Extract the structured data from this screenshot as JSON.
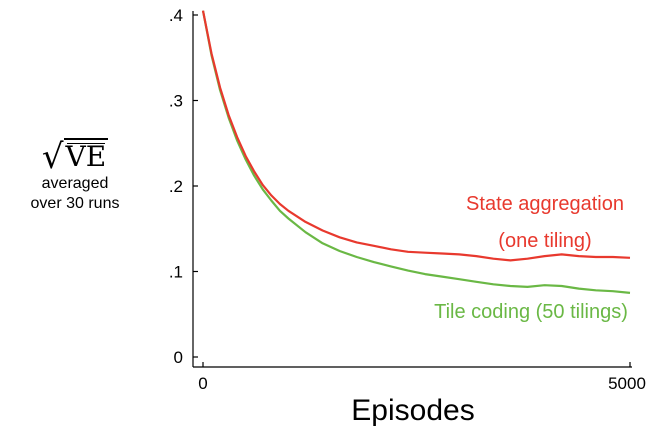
{
  "chart_data": {
    "type": "line",
    "title": "",
    "xlabel": "Episodes",
    "ylabel": {
      "main": "VE",
      "line1": "averaged",
      "line2": "over 30 runs"
    },
    "xlim": [
      0,
      5000
    ],
    "ylim": [
      0,
      0.4
    ],
    "xticks": [
      {
        "value": 0,
        "label": "0"
      },
      {
        "value": 5000,
        "label": "5000"
      }
    ],
    "yticks": [
      {
        "value": 0,
        "label": "0"
      },
      {
        "value": 0.1,
        "label": ".1"
      },
      {
        "value": 0.2,
        "label": ".2"
      },
      {
        "value": 0.3,
        "label": ".3"
      },
      {
        "value": 0.4,
        "label": ".4"
      }
    ],
    "grid": false,
    "series": [
      {
        "name": "State aggregation (one tiling)",
        "label_lines": [
          "State aggregation",
          "(one tiling)"
        ],
        "color": "#e8392e",
        "x": [
          0,
          100,
          200,
          300,
          400,
          500,
          600,
          700,
          800,
          900,
          1000,
          1200,
          1400,
          1600,
          1800,
          2000,
          2200,
          2400,
          2600,
          2800,
          3000,
          3200,
          3400,
          3600,
          3800,
          4000,
          4200,
          4400,
          4600,
          4800,
          5000
        ],
        "values": [
          0.405,
          0.355,
          0.315,
          0.283,
          0.257,
          0.235,
          0.217,
          0.201,
          0.189,
          0.179,
          0.171,
          0.158,
          0.148,
          0.14,
          0.134,
          0.13,
          0.126,
          0.123,
          0.122,
          0.121,
          0.12,
          0.118,
          0.115,
          0.113,
          0.115,
          0.118,
          0.12,
          0.118,
          0.117,
          0.117,
          0.116
        ]
      },
      {
        "name": "Tile coding (50 tilings)",
        "label_lines": [
          "Tile coding (50 tilings)"
        ],
        "color": "#6ab845",
        "x": [
          0,
          100,
          200,
          300,
          400,
          500,
          600,
          700,
          800,
          900,
          1000,
          1200,
          1400,
          1600,
          1800,
          2000,
          2200,
          2400,
          2600,
          2800,
          3000,
          3200,
          3400,
          3600,
          3800,
          4000,
          4200,
          4400,
          4600,
          4800,
          5000
        ],
        "values": [
          0.405,
          0.353,
          0.312,
          0.28,
          0.253,
          0.231,
          0.212,
          0.196,
          0.183,
          0.171,
          0.162,
          0.146,
          0.133,
          0.124,
          0.117,
          0.111,
          0.106,
          0.101,
          0.097,
          0.094,
          0.091,
          0.088,
          0.085,
          0.083,
          0.082,
          0.084,
          0.083,
          0.08,
          0.078,
          0.077,
          0.075
        ]
      }
    ]
  }
}
